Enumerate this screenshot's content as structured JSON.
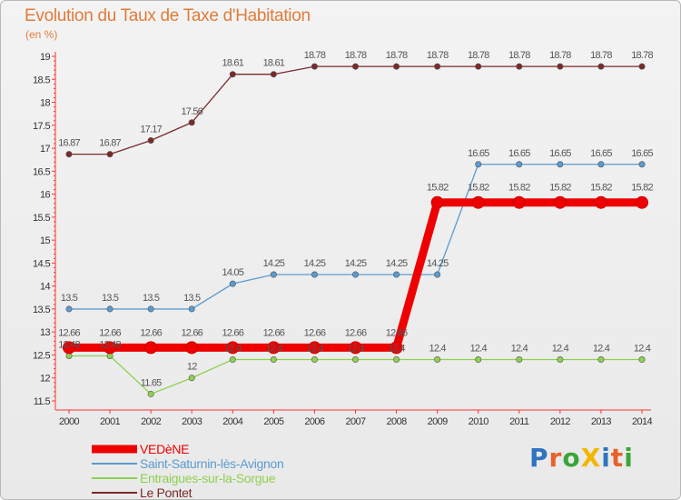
{
  "header": {
    "title": "Evolution du Taux de Taxe d'Habitation",
    "unit": "(en %)"
  },
  "logo": {
    "text": "ProXiti",
    "colors": [
      "#2f74c0",
      "#e8602b",
      "#3aa53a",
      "#f2b705",
      "#2f74c0",
      "#e8602b",
      "#3aa53a"
    ]
  },
  "chart_data": {
    "type": "line",
    "title": "Evolution du Taux de Taxe d'Habitation",
    "ylabel": "(en %)",
    "xlabel": "",
    "x": [
      2000,
      2001,
      2002,
      2003,
      2004,
      2005,
      2006,
      2007,
      2008,
      2009,
      2010,
      2011,
      2012,
      2013,
      2014
    ],
    "ylim": [
      11.5,
      19
    ],
    "yticks": [
      11.5,
      12,
      12.5,
      13,
      13.5,
      14,
      14.5,
      15,
      15.5,
      16,
      16.5,
      17,
      17.5,
      18,
      18.5,
      19
    ],
    "grid": false,
    "legend_position": "bottom-left",
    "series": [
      {
        "name": "VEDèNE",
        "color": "#ee0000",
        "values": [
          12.66,
          12.66,
          12.66,
          12.66,
          12.66,
          12.66,
          12.66,
          12.66,
          12.66,
          15.82,
          15.82,
          15.82,
          15.82,
          15.82,
          15.82
        ],
        "labels": [
          "12.66",
          "12.66",
          "12.66",
          "12.66",
          "12.66",
          "12.66",
          "12.66",
          "12.66",
          "12.66",
          "15.82",
          "15.82",
          "15.82",
          "15.82",
          "15.82",
          "15.82"
        ]
      },
      {
        "name": "Saint-Saturnin-lès-Avignon",
        "color": "#5b9bd0",
        "values": [
          13.5,
          13.5,
          13.5,
          13.5,
          14.05,
          14.25,
          14.25,
          14.25,
          14.25,
          14.25,
          16.65,
          16.65,
          16.65,
          16.65,
          16.65
        ],
        "labels": [
          "13.5",
          "13.5",
          "13.5",
          "13.5",
          "14.05",
          "14.25",
          "14.25",
          "14.25",
          "14.25",
          "14.25",
          "16.65",
          "16.65",
          "16.65",
          "16.65",
          "16.65"
        ]
      },
      {
        "name": "Entraigues-sur-la-Sorgue",
        "color": "#8fd14f",
        "values": [
          12.48,
          12.48,
          11.65,
          12,
          12.4,
          12.4,
          12.4,
          12.4,
          12.4,
          12.4,
          12.4,
          12.4,
          12.4,
          12.4,
          12.4
        ],
        "labels": [
          "12.48",
          "12.48",
          "11.65",
          "12",
          "12.4",
          "12.4",
          "12.4",
          "12.4",
          "12.4",
          "12.4",
          "12.4",
          "12.4",
          "12.4",
          "12.4",
          "12.4"
        ]
      },
      {
        "name": "Le Pontet",
        "color": "#7a2a2a",
        "values": [
          16.87,
          16.87,
          17.17,
          17.56,
          18.61,
          18.61,
          18.78,
          18.78,
          18.78,
          18.78,
          18.78,
          18.78,
          18.78,
          18.78,
          18.78
        ],
        "labels": [
          "16.87",
          "16.87",
          "17.17",
          "17.56",
          "18.61",
          "18.61",
          "18.78",
          "18.78",
          "18.78",
          "18.78",
          "18.78",
          "18.78",
          "18.78",
          "18.78",
          "18.78"
        ]
      }
    ]
  }
}
